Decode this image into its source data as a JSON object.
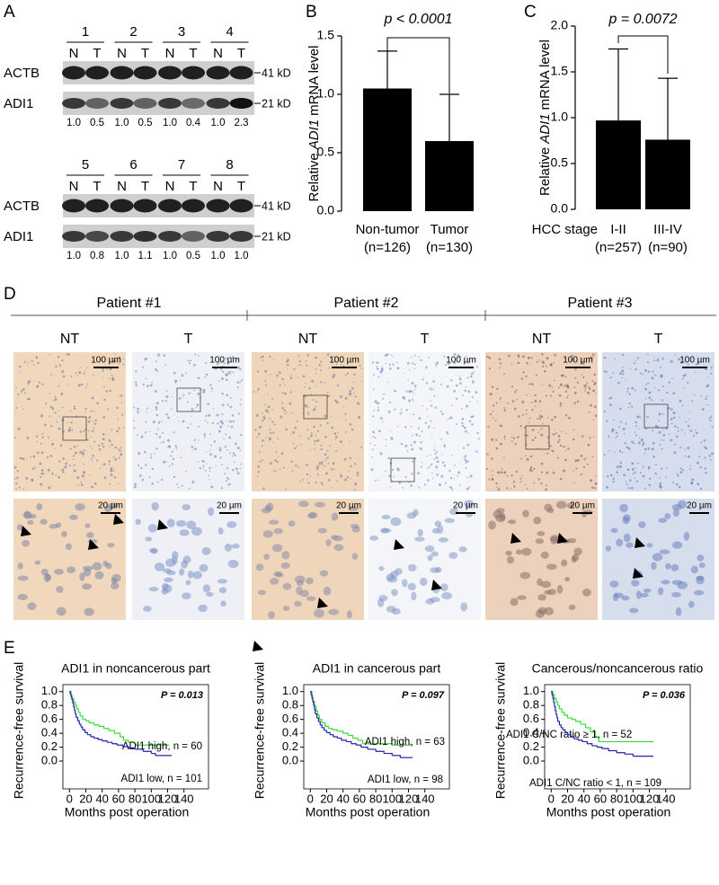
{
  "panel_labels": {
    "a": "A",
    "b": "B",
    "c": "C",
    "d": "D",
    "e": "E"
  },
  "blot": {
    "proteins": [
      "ACTB",
      "ADI1"
    ],
    "kd": [
      "41 kD",
      "21 kD"
    ],
    "lane_labels": [
      "N",
      "T"
    ],
    "groups": [
      {
        "patients": [
          "1",
          "2",
          "3",
          "4"
        ],
        "ratios": [
          "1.0",
          "0.5",
          "1.0",
          "0.5",
          "1.0",
          "0.4",
          "1.0",
          "2.3"
        ]
      },
      {
        "patients": [
          "5",
          "6",
          "7",
          "8"
        ],
        "ratios": [
          "1.0",
          "0.8",
          "1.0",
          "1.1",
          "1.0",
          "0.5",
          "1.0",
          "1.0"
        ]
      }
    ]
  },
  "ihc": {
    "patients": [
      "Patient #1",
      "Patient #2",
      "Patient #3"
    ],
    "columns": [
      "NT",
      "T"
    ],
    "scale_low": "100 µm",
    "scale_high": "20 µm"
  },
  "chart_data": [
    {
      "type": "bar",
      "categories": [
        "Non-tumor",
        "Tumor"
      ],
      "category_notes": [
        "(n=126)",
        "(n=130)"
      ],
      "values": [
        1.05,
        0.6
      ],
      "errors": [
        0.32,
        0.4
      ],
      "color": "#000000",
      "ylabel": [
        "Relative",
        "ADI1",
        "mRNA level"
      ],
      "ylim": [
        0,
        1.5
      ],
      "yticks": [
        {
          "value": 0,
          "label": "0.0"
        },
        0.5,
        {
          "value": 1,
          "label": "1.0"
        },
        1.5
      ],
      "annotation": "p < 0.0001"
    },
    {
      "type": "bar",
      "xlabel": "HCC stage",
      "categories": [
        "I-II",
        "III-IV"
      ],
      "category_notes": [
        "(n=257)",
        "(n=90)"
      ],
      "values": [
        0.97,
        0.76
      ],
      "errors": [
        0.78,
        0.67
      ],
      "color": "#000000",
      "ylabel": [
        "Relative",
        "ADI1",
        "mRNA level"
      ],
      "ylim": [
        0,
        2
      ],
      "yticks": [
        {
          "value": 0,
          "label": "0.0"
        },
        0.5,
        {
          "value": 1,
          "label": "1.0"
        },
        1.5,
        {
          "value": 2,
          "label": "2.0"
        }
      ],
      "annotation": "p = 0.0072"
    },
    {
      "type": "step",
      "title": "ADI1 in noncancerous part",
      "annotation": "P = 0.013",
      "xlabel": "Months post operation",
      "ylabel": "Recurrence-free survival",
      "xlim": [
        -8,
        170
      ],
      "xticks": [
        0,
        20,
        40,
        60,
        80,
        100,
        120,
        140
      ],
      "ylim": [
        -0.4,
        1.1
      ],
      "yticks": [
        {
          "value": 0,
          "label": "0.0"
        },
        0.2,
        0.4,
        0.6,
        0.8,
        {
          "value": 1,
          "label": "1.0"
        }
      ],
      "series": [
        {
          "name": "ADI1 high, n = 60",
          "color": "#33dd33",
          "x": [
            0,
            2,
            3,
            5,
            7,
            9,
            11,
            13,
            16,
            20,
            24,
            30,
            36,
            42,
            48,
            55,
            62,
            66,
            72,
            80,
            122
          ],
          "values": [
            1,
            0.95,
            0.9,
            0.85,
            0.8,
            0.75,
            0.7,
            0.65,
            0.6,
            0.58,
            0.55,
            0.52,
            0.5,
            0.47,
            0.44,
            0.4,
            0.35,
            0.3,
            0.27,
            0.23,
            0.23
          ]
        },
        {
          "name": "ADI1 low, n = 101",
          "color": "#2222aa",
          "x": [
            0,
            1,
            2,
            3,
            4,
            5,
            6,
            7,
            8,
            10,
            12,
            14,
            16,
            19,
            22,
            26,
            30,
            35,
            40,
            46,
            52,
            58,
            65,
            72,
            80,
            90,
            100,
            105,
            125
          ],
          "values": [
            1,
            0.96,
            0.92,
            0.88,
            0.83,
            0.78,
            0.73,
            0.68,
            0.63,
            0.58,
            0.53,
            0.49,
            0.45,
            0.41,
            0.38,
            0.35,
            0.33,
            0.31,
            0.29,
            0.27,
            0.25,
            0.23,
            0.21,
            0.19,
            0.17,
            0.14,
            0.11,
            0.08,
            0.08
          ]
        }
      ]
    },
    {
      "type": "step",
      "title": "ADI1 in cancerous part",
      "annotation": "P = 0.097",
      "xlabel": "Months post operation",
      "ylabel": "Recurrence-free survival",
      "xlim": [
        -8,
        170
      ],
      "xticks": [
        0,
        20,
        40,
        60,
        80,
        100,
        120,
        140
      ],
      "ylim": [
        -0.4,
        1.1
      ],
      "yticks": [
        {
          "value": 0,
          "label": "0.0"
        },
        0.2,
        0.4,
        0.6,
        0.8,
        {
          "value": 1,
          "label": "1.0"
        }
      ],
      "series": [
        {
          "name": "ADI1 high, n = 63",
          "color": "#33dd33",
          "x": [
            0,
            2,
            3,
            5,
            7,
            9,
            11,
            14,
            18,
            22,
            27,
            33,
            40,
            46,
            52,
            58,
            64,
            100,
            125
          ],
          "values": [
            1,
            0.93,
            0.86,
            0.79,
            0.72,
            0.66,
            0.6,
            0.55,
            0.5,
            0.47,
            0.45,
            0.43,
            0.4,
            0.37,
            0.33,
            0.3,
            0.25,
            0.23,
            0.23
          ]
        },
        {
          "name": "ADI1 low, n = 98",
          "color": "#2222aa",
          "x": [
            0,
            1,
            2,
            3,
            4,
            5,
            6,
            8,
            10,
            12,
            14,
            17,
            20,
            24,
            28,
            33,
            38,
            44,
            50,
            56,
            62,
            70,
            80,
            90,
            100,
            110,
            125
          ],
          "values": [
            1,
            0.95,
            0.9,
            0.85,
            0.8,
            0.74,
            0.68,
            0.62,
            0.57,
            0.52,
            0.48,
            0.44,
            0.41,
            0.38,
            0.35,
            0.33,
            0.3,
            0.28,
            0.25,
            0.23,
            0.2,
            0.17,
            0.14,
            0.11,
            0.08,
            0.05,
            0.05
          ]
        }
      ]
    },
    {
      "type": "step",
      "title": "Cancerous/noncancerous ratio",
      "annotation": "P = 0.036",
      "xlabel": "Months post operation",
      "ylabel": "Recurrence-free survival",
      "xlim": [
        -8,
        170
      ],
      "xticks": [
        0,
        20,
        40,
        60,
        80,
        100,
        120,
        140
      ],
      "ylim": [
        -0.4,
        1.1
      ],
      "yticks": [
        {
          "value": 0,
          "label": "0.0"
        },
        0.2,
        0.4,
        0.6,
        0.8,
        {
          "value": 1,
          "label": "1.0"
        }
      ],
      "series": [
        {
          "name": "ADI1 C/NC ratio ≥ 1, n = 52",
          "color": "#33dd33",
          "x": [
            0,
            2,
            4,
            6,
            8,
            10,
            13,
            16,
            20,
            25,
            30,
            36,
            42,
            48,
            54,
            58,
            125
          ],
          "values": [
            1,
            0.96,
            0.9,
            0.85,
            0.8,
            0.75,
            0.7,
            0.66,
            0.62,
            0.6,
            0.57,
            0.53,
            0.48,
            0.42,
            0.35,
            0.28,
            0.28
          ]
        },
        {
          "name": "ADI1 C/NC ratio < 1, n = 109",
          "color": "#2222aa",
          "x": [
            0,
            1,
            2,
            3,
            4,
            5,
            6,
            7,
            8,
            10,
            12,
            14,
            17,
            20,
            24,
            28,
            33,
            38,
            44,
            50,
            56,
            62,
            70,
            80,
            90,
            100,
            125
          ],
          "values": [
            1,
            0.95,
            0.9,
            0.84,
            0.78,
            0.72,
            0.67,
            0.62,
            0.57,
            0.52,
            0.48,
            0.45,
            0.41,
            0.38,
            0.35,
            0.32,
            0.3,
            0.28,
            0.25,
            0.22,
            0.2,
            0.18,
            0.15,
            0.12,
            0.1,
            0.07,
            0.07
          ]
        }
      ]
    }
  ]
}
